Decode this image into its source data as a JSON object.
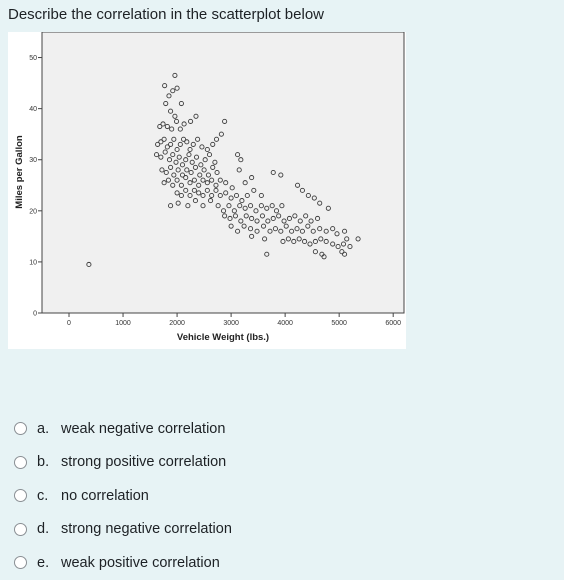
{
  "question": {
    "text": "Describe the correlation in the scatterplot below"
  },
  "chart_data": {
    "type": "scatter",
    "title": "",
    "xlabel": "Vehicle Weight (lbs.)",
    "ylabel": "Miles per Gallon",
    "xlim": [
      -500,
      6200
    ],
    "ylim": [
      0,
      55
    ],
    "x_ticks": [
      0,
      1000,
      2000,
      3000,
      4000,
      5000,
      6000
    ],
    "y_ticks": [
      0,
      10,
      20,
      30,
      40,
      50
    ],
    "x_tick_labels": [
      "0",
      "1000",
      "2000",
      "3000",
      "4000",
      "5000",
      "6000"
    ],
    "y_tick_labels": [
      "0",
      "10",
      "20",
      "30",
      "40",
      "50"
    ],
    "grid": false,
    "plot_background": "#f0f0f0",
    "marker_color": "#3c3c3c",
    "points": [
      [
        368,
        9.5
      ],
      [
        1770,
        44.5
      ],
      [
        1850,
        42.5
      ],
      [
        1790,
        41
      ],
      [
        1920,
        43.5
      ],
      [
        1960,
        46.5
      ],
      [
        2000,
        44
      ],
      [
        1880,
        39.5
      ],
      [
        1960,
        38.5
      ],
      [
        2080,
        41
      ],
      [
        1680,
        36.5
      ],
      [
        1740,
        37
      ],
      [
        1820,
        36.5
      ],
      [
        1900,
        36
      ],
      [
        1990,
        37.5
      ],
      [
        2060,
        36
      ],
      [
        2130,
        37
      ],
      [
        2250,
        37.5
      ],
      [
        2350,
        38.5
      ],
      [
        2880,
        37.5
      ],
      [
        2820,
        35
      ],
      [
        1640,
        33
      ],
      [
        1700,
        33.5
      ],
      [
        1760,
        34
      ],
      [
        1820,
        32.5
      ],
      [
        1880,
        33
      ],
      [
        1940,
        34
      ],
      [
        2000,
        32
      ],
      [
        2060,
        33
      ],
      [
        2120,
        34
      ],
      [
        2180,
        33.5
      ],
      [
        2240,
        32
      ],
      [
        2300,
        33
      ],
      [
        2380,
        34
      ],
      [
        2460,
        32.5
      ],
      [
        2560,
        32
      ],
      [
        2660,
        33
      ],
      [
        2730,
        34
      ],
      [
        1620,
        31
      ],
      [
        1700,
        30.5
      ],
      [
        1780,
        31.5
      ],
      [
        1860,
        30
      ],
      [
        1920,
        31
      ],
      [
        1980,
        29.5
      ],
      [
        2040,
        30.5
      ],
      [
        2100,
        29
      ],
      [
        2160,
        30
      ],
      [
        2220,
        31
      ],
      [
        2280,
        29.5
      ],
      [
        2360,
        30.5
      ],
      [
        2440,
        29
      ],
      [
        2520,
        30
      ],
      [
        2600,
        31
      ],
      [
        2700,
        29.5
      ],
      [
        3120,
        31
      ],
      [
        3180,
        30
      ],
      [
        1720,
        28
      ],
      [
        1800,
        27.5
      ],
      [
        1880,
        28.5
      ],
      [
        1940,
        27
      ],
      [
        2020,
        28
      ],
      [
        2100,
        27
      ],
      [
        2180,
        28
      ],
      [
        2260,
        27.5
      ],
      [
        2340,
        28.5
      ],
      [
        2420,
        27
      ],
      [
        2500,
        28
      ],
      [
        2580,
        27
      ],
      [
        2660,
        28.5
      ],
      [
        2740,
        27.5
      ],
      [
        3150,
        28
      ],
      [
        1760,
        25.5
      ],
      [
        1840,
        26
      ],
      [
        1920,
        25
      ],
      [
        2000,
        26
      ],
      [
        2080,
        25
      ],
      [
        2160,
        26.5
      ],
      [
        2240,
        25.5
      ],
      [
        2320,
        26
      ],
      [
        2400,
        25
      ],
      [
        2480,
        26
      ],
      [
        2560,
        25.5
      ],
      [
        2640,
        26
      ],
      [
        2720,
        25
      ],
      [
        2800,
        26
      ],
      [
        2900,
        25.5
      ],
      [
        3020,
        24.5
      ],
      [
        3260,
        25.5
      ],
      [
        3380,
        26.5
      ],
      [
        2000,
        23.5
      ],
      [
        2080,
        23
      ],
      [
        2160,
        24
      ],
      [
        2240,
        23
      ],
      [
        2320,
        24
      ],
      [
        2400,
        23.5
      ],
      [
        2480,
        23
      ],
      [
        2560,
        24
      ],
      [
        2640,
        23
      ],
      [
        2720,
        24
      ],
      [
        2800,
        23
      ],
      [
        2900,
        23.5
      ],
      [
        3000,
        22.5
      ],
      [
        3100,
        23
      ],
      [
        3200,
        22
      ],
      [
        3300,
        23
      ],
      [
        3420,
        24
      ],
      [
        3560,
        23
      ],
      [
        1880,
        21
      ],
      [
        2020,
        21.5
      ],
      [
        2200,
        21
      ],
      [
        2340,
        22
      ],
      [
        2480,
        21
      ],
      [
        2620,
        22
      ],
      [
        2760,
        21
      ],
      [
        2860,
        20
      ],
      [
        2960,
        21
      ],
      [
        3060,
        20
      ],
      [
        3160,
        21
      ],
      [
        3260,
        20.5
      ],
      [
        3360,
        21
      ],
      [
        3460,
        20
      ],
      [
        3560,
        21
      ],
      [
        3660,
        20.5
      ],
      [
        3760,
        21
      ],
      [
        3840,
        20
      ],
      [
        3940,
        21
      ],
      [
        2880,
        19
      ],
      [
        2980,
        18.5
      ],
      [
        3080,
        19
      ],
      [
        3180,
        18
      ],
      [
        3280,
        19
      ],
      [
        3380,
        18.5
      ],
      [
        3480,
        18
      ],
      [
        3580,
        19
      ],
      [
        3680,
        18
      ],
      [
        3780,
        18.5
      ],
      [
        3880,
        19
      ],
      [
        3980,
        18
      ],
      [
        4080,
        18.5
      ],
      [
        4180,
        19
      ],
      [
        4280,
        18
      ],
      [
        4380,
        19
      ],
      [
        4480,
        18
      ],
      [
        4600,
        18.5
      ],
      [
        3000,
        17
      ],
      [
        3120,
        16
      ],
      [
        3240,
        17
      ],
      [
        3360,
        16.5
      ],
      [
        3480,
        16
      ],
      [
        3600,
        17
      ],
      [
        3720,
        16
      ],
      [
        3820,
        16.5
      ],
      [
        3920,
        16
      ],
      [
        4020,
        17
      ],
      [
        4120,
        16
      ],
      [
        4220,
        16.5
      ],
      [
        4320,
        16
      ],
      [
        4420,
        17
      ],
      [
        4520,
        16
      ],
      [
        4640,
        16.5
      ],
      [
        4760,
        16
      ],
      [
        4880,
        16.5
      ],
      [
        4960,
        15.5
      ],
      [
        5100,
        16
      ],
      [
        3380,
        15
      ],
      [
        3620,
        14.5
      ],
      [
        3960,
        14
      ],
      [
        4060,
        14.5
      ],
      [
        4160,
        14
      ],
      [
        4260,
        14.5
      ],
      [
        4360,
        14
      ],
      [
        4460,
        13.5
      ],
      [
        4560,
        14
      ],
      [
        4660,
        14.5
      ],
      [
        4760,
        14
      ],
      [
        4880,
        13.5
      ],
      [
        4980,
        13
      ],
      [
        5080,
        13.5
      ],
      [
        5200,
        13
      ],
      [
        3660,
        11.5
      ],
      [
        4560,
        12
      ],
      [
        4680,
        11.5
      ],
      [
        4720,
        11
      ],
      [
        5050,
        12
      ],
      [
        5100,
        11.5
      ],
      [
        3920,
        27
      ],
      [
        3780,
        27.5
      ],
      [
        4230,
        25
      ],
      [
        4320,
        24
      ],
      [
        4430,
        23
      ],
      [
        4540,
        22.5
      ],
      [
        4640,
        21.5
      ],
      [
        4800,
        20.5
      ],
      [
        5140,
        14.5
      ],
      [
        5350,
        14.5
      ]
    ]
  },
  "options": [
    {
      "letter": "a.",
      "text": "weak negative correlation"
    },
    {
      "letter": "b.",
      "text": "strong positive correlation"
    },
    {
      "letter": "c.",
      "text": "no correlation"
    },
    {
      "letter": "d.",
      "text": "strong negative correlation"
    },
    {
      "letter": "e.",
      "text": "weak positive correlation"
    }
  ]
}
